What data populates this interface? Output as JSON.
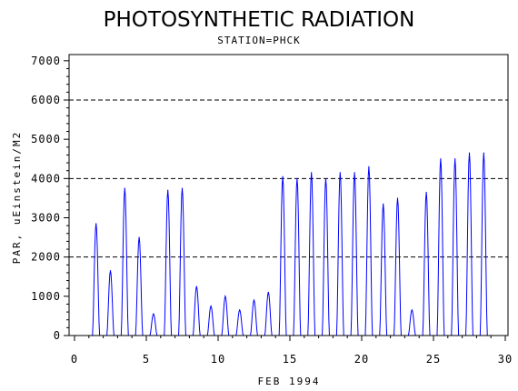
{
  "chart_data": {
    "type": "line",
    "title": "PHOTOSYNTHETIC RADIATION",
    "subtitle": "STATION=PHCK",
    "xlabel": "FEB 1994",
    "ylabel": "PAR, uEinstein/M2",
    "xlim": [
      0,
      30
    ],
    "ylim": [
      0,
      7000
    ],
    "x_ticks": [
      0,
      5,
      10,
      15,
      20,
      25,
      30
    ],
    "y_ticks": [
      0,
      1000,
      2000,
      3000,
      4000,
      5000,
      6000,
      7000
    ],
    "reference_lines": [
      2000,
      4000,
      6000
    ],
    "series_color": "#0000ff",
    "daily_peaks": [
      {
        "day": 1,
        "peak": 2850
      },
      {
        "day": 2,
        "peak": 1650
      },
      {
        "day": 3,
        "peak": 3750
      },
      {
        "day": 4,
        "peak": 2500
      },
      {
        "day": 5,
        "peak": 550
      },
      {
        "day": 6,
        "peak": 3700
      },
      {
        "day": 7,
        "peak": 3750
      },
      {
        "day": 8,
        "peak": 1250
      },
      {
        "day": 9,
        "peak": 750
      },
      {
        "day": 10,
        "peak": 1000
      },
      {
        "day": 11,
        "peak": 650
      },
      {
        "day": 12,
        "peak": 900
      },
      {
        "day": 13,
        "peak": 1100
      },
      {
        "day": 14,
        "peak": 4050
      },
      {
        "day": 15,
        "peak": 4000
      },
      {
        "day": 16,
        "peak": 4150
      },
      {
        "day": 17,
        "peak": 4000
      },
      {
        "day": 18,
        "peak": 4150
      },
      {
        "day": 19,
        "peak": 4150
      },
      {
        "day": 20,
        "peak": 4300
      },
      {
        "day": 21,
        "peak": 3350
      },
      {
        "day": 22,
        "peak": 3500
      },
      {
        "day": 23,
        "peak": 650
      },
      {
        "day": 24,
        "peak": 3650
      },
      {
        "day": 25,
        "peak": 4500
      },
      {
        "day": 26,
        "peak": 4500
      },
      {
        "day": 27,
        "peak": 4650
      },
      {
        "day": 28,
        "peak": 4650
      }
    ]
  }
}
